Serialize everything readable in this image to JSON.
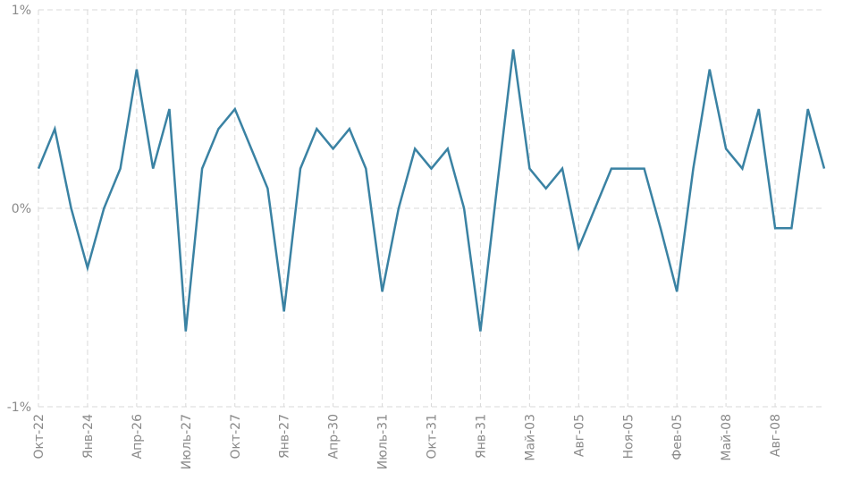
{
  "chart_data": {
    "type": "line",
    "title": "",
    "xlabel": "",
    "ylabel": "",
    "y_tick_labels": [
      "1%",
      "0%",
      "-1%"
    ],
    "y_tick_values": [
      1,
      0,
      -1
    ],
    "ylim": [
      -1,
      1
    ],
    "grid": true,
    "colors": {
      "series": "#3a82a3",
      "grid": "#d9d9d9",
      "text": "#8a8a8a"
    },
    "x_tick_labels": [
      {
        "index": 0,
        "label": "Окт-22"
      },
      {
        "index": 3,
        "label": "Янв-24"
      },
      {
        "index": 6,
        "label": "Апр-26"
      },
      {
        "index": 9,
        "label": "Июль-27"
      },
      {
        "index": 12,
        "label": "Окт-27"
      },
      {
        "index": 15,
        "label": "Янв-27"
      },
      {
        "index": 18,
        "label": "Апр-30"
      },
      {
        "index": 21,
        "label": "Июль-31"
      },
      {
        "index": 24,
        "label": "Окт-31"
      },
      {
        "index": 27,
        "label": "Янв-31"
      },
      {
        "index": 30,
        "label": "Май-03"
      },
      {
        "index": 33,
        "label": "Авг-05"
      },
      {
        "index": 36,
        "label": "Ноя-05"
      },
      {
        "index": 39,
        "label": "Фев-05"
      },
      {
        "index": 42,
        "label": "Май-08"
      },
      {
        "index": 45,
        "label": "Авг-08"
      }
    ],
    "series": [
      {
        "values": [
          0.2,
          0.4,
          0.0,
          -0.3,
          0.0,
          0.2,
          0.7,
          0.2,
          0.5,
          -0.62,
          0.2,
          0.4,
          0.5,
          0.3,
          0.1,
          -0.52,
          0.2,
          0.4,
          0.3,
          0.4,
          0.2,
          -0.42,
          0.0,
          0.3,
          0.2,
          0.3,
          0.0,
          -0.62,
          0.1,
          0.8,
          0.2,
          0.1,
          0.2,
          -0.2,
          0.0,
          0.2,
          0.2,
          0.2,
          -0.1,
          -0.42,
          0.2,
          0.7,
          0.3,
          0.2,
          0.5,
          -0.1,
          -0.1,
          0.5,
          0.2
        ]
      }
    ]
  }
}
